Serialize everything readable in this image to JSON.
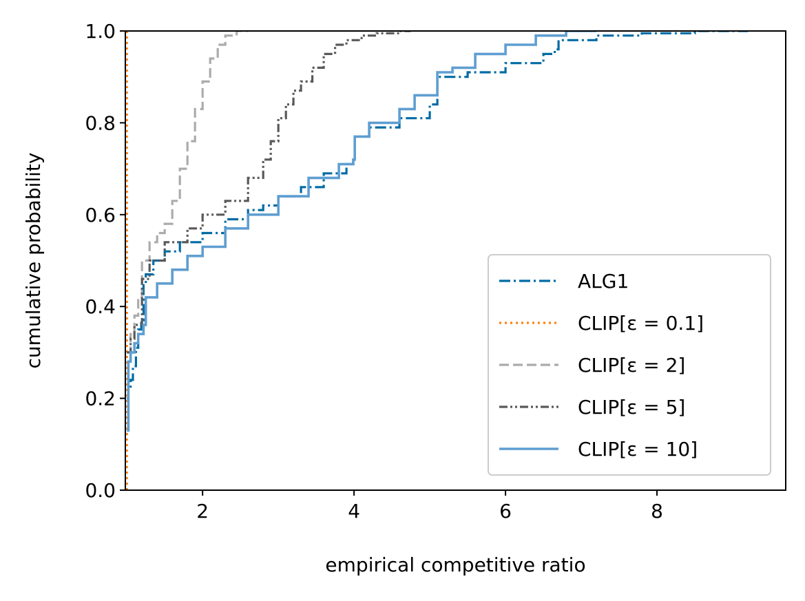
{
  "chart_data": {
    "type": "line",
    "subtype": "empirical CDF (step)",
    "title": "",
    "xlabel": "empirical competitive ratio",
    "ylabel": "cumulative probability",
    "xlim": [
      0.98,
      9.7
    ],
    "ylim": [
      0.0,
      1.0
    ],
    "x_ticks": [
      2,
      4,
      6,
      8
    ],
    "x_tick_labels": [
      "2",
      "4",
      "6",
      "8"
    ],
    "y_ticks": [
      0.0,
      0.2,
      0.4,
      0.6,
      0.8,
      1.0
    ],
    "y_tick_labels": [
      "0.0",
      "0.2",
      "0.4",
      "0.6",
      "0.8",
      "1.0"
    ],
    "grid": false,
    "legend_position": "lower-right",
    "series": [
      {
        "name": "ALG1",
        "color": "#006BA4",
        "style": "dashdot",
        "x": [
          1.0,
          1.02,
          1.05,
          1.08,
          1.12,
          1.15,
          1.19,
          1.22,
          1.25,
          1.35,
          1.5,
          1.7,
          2.0,
          2.3,
          2.6,
          2.8,
          3.0,
          3.3,
          3.6,
          3.9,
          3.99,
          4.01,
          4.2,
          4.6,
          5.0,
          5.05,
          5.1,
          5.5,
          6.0,
          6.5,
          6.65,
          6.7,
          7.2,
          7.8,
          8.5,
          9.2
        ],
        "y": [
          0.2,
          0.22,
          0.24,
          0.27,
          0.31,
          0.35,
          0.37,
          0.45,
          0.47,
          0.5,
          0.52,
          0.54,
          0.56,
          0.59,
          0.61,
          0.62,
          0.64,
          0.66,
          0.69,
          0.71,
          0.72,
          0.77,
          0.79,
          0.81,
          0.84,
          0.84,
          0.9,
          0.91,
          0.93,
          0.95,
          0.96,
          0.98,
          0.99,
          0.995,
          1.0,
          1.0
        ]
      },
      {
        "name": "CLIP[ε = 0.1]",
        "color": "#FF800E",
        "style": "dotted",
        "x": [
          1.0,
          1.0,
          1.0
        ],
        "y": [
          0.0,
          0.5,
          1.0
        ]
      },
      {
        "name": "CLIP[ε = 2]",
        "color": "#ABABAB",
        "style": "dashed",
        "x": [
          1.0,
          1.05,
          1.1,
          1.15,
          1.2,
          1.3,
          1.4,
          1.5,
          1.6,
          1.7,
          1.8,
          1.9,
          2.0,
          2.1,
          2.2,
          2.3,
          2.45,
          2.6
        ],
        "y": [
          0.3,
          0.34,
          0.38,
          0.42,
          0.5,
          0.54,
          0.56,
          0.58,
          0.63,
          0.7,
          0.76,
          0.83,
          0.89,
          0.94,
          0.97,
          0.99,
          1.0,
          1.0
        ]
      },
      {
        "name": "CLIP[ε = 5]",
        "color": "#595959",
        "style": "dashdotdot",
        "x": [
          1.0,
          1.05,
          1.1,
          1.2,
          1.3,
          1.5,
          1.8,
          2.0,
          2.3,
          2.6,
          2.8,
          2.9,
          3.0,
          3.1,
          3.2,
          3.3,
          3.45,
          3.6,
          3.75,
          3.9,
          4.1,
          4.3,
          4.6,
          4.75
        ],
        "y": [
          0.3,
          0.33,
          0.36,
          0.46,
          0.5,
          0.54,
          0.57,
          0.6,
          0.63,
          0.68,
          0.72,
          0.76,
          0.81,
          0.84,
          0.87,
          0.89,
          0.92,
          0.95,
          0.97,
          0.98,
          0.99,
          0.995,
          1.0,
          1.0
        ]
      },
      {
        "name": "CLIP[ε = 10]",
        "color": "#5F9ED1",
        "style": "solid",
        "x": [
          1.0,
          1.02,
          1.05,
          1.1,
          1.15,
          1.22,
          1.25,
          1.4,
          1.6,
          1.8,
          2.0,
          2.3,
          2.6,
          3.0,
          3.4,
          3.8,
          3.99,
          4.01,
          4.2,
          4.6,
          4.8,
          5.05,
          5.1,
          5.3,
          5.6,
          6.0,
          6.4,
          6.8,
          7.2
        ],
        "y": [
          0.13,
          0.28,
          0.3,
          0.32,
          0.34,
          0.36,
          0.42,
          0.45,
          0.48,
          0.51,
          0.53,
          0.57,
          0.6,
          0.64,
          0.68,
          0.71,
          0.72,
          0.77,
          0.8,
          0.83,
          0.86,
          0.86,
          0.91,
          0.92,
          0.95,
          0.97,
          0.99,
          1.0,
          1.0
        ]
      }
    ]
  }
}
